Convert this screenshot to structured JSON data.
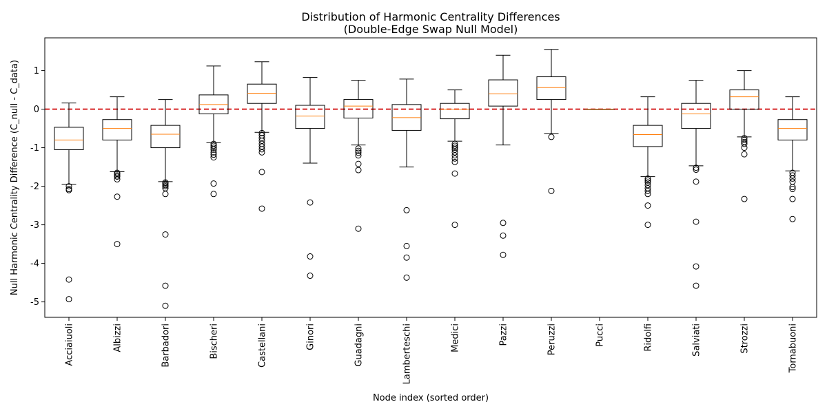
{
  "chart_data": {
    "type": "box",
    "title": "Distribution of Harmonic Centrality Differences",
    "subtitle": "(Double-Edge Swap Null Model)",
    "xlabel": "Node index (sorted order)",
    "ylabel": "Null Harmonic Centrality Difference (C_null - C_data)",
    "ylim": [
      -5.4,
      1.85
    ],
    "yticks": [
      -5,
      -4,
      -3,
      -2,
      -1,
      0,
      1
    ],
    "reference_line": {
      "y": 0,
      "color": "#d62728",
      "style": "dashed"
    },
    "box_color": "#000000",
    "median_color": "#ff7f0e",
    "categories": [
      "Acciaiuoli",
      "Albizzi",
      "Barbadori",
      "Bischeri",
      "Castellani",
      "Ginori",
      "Guadagni",
      "Lamberteschi",
      "Medici",
      "Pazzi",
      "Peruzzi",
      "Pucci",
      "Ridolfi",
      "Salviati",
      "Strozzi",
      "Tornabuoni"
    ],
    "boxes": [
      {
        "whislo": -1.95,
        "q1": -1.05,
        "med": -0.8,
        "q3": -0.47,
        "whishi": 0.16,
        "fliers": [
          -2.0,
          -2.07,
          -2.1,
          -4.42,
          -4.93
        ]
      },
      {
        "whislo": -1.62,
        "q1": -0.8,
        "med": -0.5,
        "q3": -0.27,
        "whishi": 0.32,
        "fliers": [
          -1.65,
          -1.68,
          -1.72,
          -1.75,
          -1.82,
          -2.27,
          -3.5
        ]
      },
      {
        "whislo": -1.88,
        "q1": -1.0,
        "med": -0.65,
        "q3": -0.42,
        "whishi": 0.25,
        "fliers": [
          -1.9,
          -1.93,
          -1.97,
          -2.0,
          -2.05,
          -2.2,
          -3.25,
          -4.58,
          -5.1
        ]
      },
      {
        "whislo": -0.87,
        "q1": -0.12,
        "med": 0.12,
        "q3": 0.37,
        "whishi": 1.12,
        "fliers": [
          -0.9,
          -0.95,
          -1.0,
          -1.05,
          -1.12,
          -1.18,
          -1.25,
          -1.93,
          -2.2
        ]
      },
      {
        "whislo": -0.6,
        "q1": 0.15,
        "med": 0.41,
        "q3": 0.65,
        "whishi": 1.23,
        "fliers": [
          -0.62,
          -0.68,
          -0.75,
          -0.82,
          -0.9,
          -0.97,
          -1.04,
          -1.12,
          -1.63,
          -2.58
        ]
      },
      {
        "whislo": -1.4,
        "q1": -0.5,
        "med": -0.18,
        "q3": 0.1,
        "whishi": 0.82,
        "fliers": [
          -2.42,
          -3.82,
          -4.32
        ]
      },
      {
        "whislo": -0.93,
        "q1": -0.23,
        "med": 0.08,
        "q3": 0.25,
        "whishi": 0.75,
        "fliers": [
          -1.02,
          -1.08,
          -1.13,
          -1.2,
          -1.42,
          -1.58,
          -3.1
        ]
      },
      {
        "whislo": -1.5,
        "q1": -0.55,
        "med": -0.22,
        "q3": 0.12,
        "whishi": 0.78,
        "fliers": [
          -2.62,
          -3.55,
          -3.85,
          -4.37
        ]
      },
      {
        "whislo": -0.83,
        "q1": -0.25,
        "med": 0.0,
        "q3": 0.15,
        "whishi": 0.5,
        "fliers": [
          -0.9,
          -0.95,
          -1.0,
          -1.05,
          -1.12,
          -1.2,
          -1.28,
          -1.37,
          -1.67,
          -3.0
        ]
      },
      {
        "whislo": -0.93,
        "q1": 0.08,
        "med": 0.4,
        "q3": 0.76,
        "whishi": 1.4,
        "fliers": [
          -2.95,
          -3.28,
          -3.78
        ]
      },
      {
        "whislo": -0.63,
        "q1": 0.25,
        "med": 0.56,
        "q3": 0.84,
        "whishi": 1.55,
        "fliers": [
          -0.72,
          -2.12
        ]
      },
      {
        "whislo": 0.0,
        "q1": 0.0,
        "med": 0.0,
        "q3": 0.0,
        "whishi": 0.0,
        "fliers": []
      },
      {
        "whislo": -1.75,
        "q1": -0.97,
        "med": -0.66,
        "q3": -0.42,
        "whishi": 0.32,
        "fliers": [
          -1.8,
          -1.85,
          -1.9,
          -1.97,
          -2.05,
          -2.12,
          -2.2,
          -2.5,
          -3.0
        ]
      },
      {
        "whislo": -1.47,
        "q1": -0.5,
        "med": -0.12,
        "q3": 0.15,
        "whishi": 0.75,
        "fliers": [
          -1.52,
          -1.57,
          -1.88,
          -2.92,
          -4.08,
          -4.58
        ]
      },
      {
        "whislo": -0.72,
        "q1": 0.0,
        "med": 0.32,
        "q3": 0.5,
        "whishi": 1.0,
        "fliers": [
          -0.75,
          -0.8,
          -0.85,
          -0.9,
          -1.0,
          -1.17,
          -2.33
        ]
      },
      {
        "whislo": -1.6,
        "q1": -0.8,
        "med": -0.5,
        "q3": -0.27,
        "whishi": 0.32,
        "fliers": [
          -1.65,
          -1.72,
          -1.8,
          -1.88,
          -2.02,
          -2.07,
          -2.33,
          -2.85
        ]
      }
    ]
  }
}
